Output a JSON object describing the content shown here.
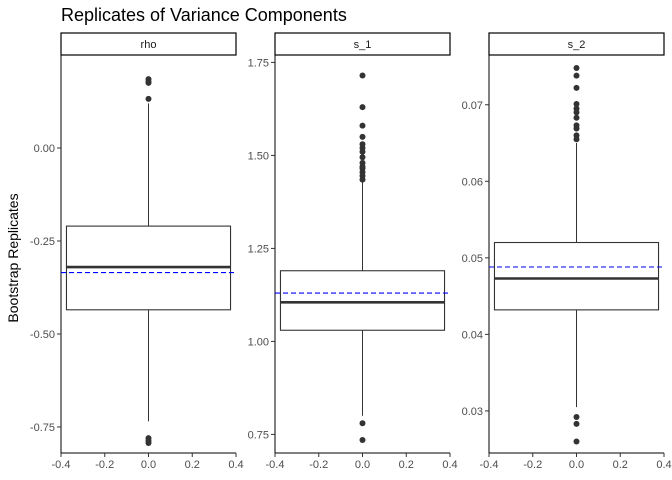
{
  "chart_data": {
    "type": "boxplot",
    "title": "Replicates of Variance Components",
    "ylabel": "Bootstrap Replicates",
    "xlabel": "",
    "x_ticks": [
      "-0.4",
      "-0.2",
      "0.0",
      "0.2",
      "0.4"
    ],
    "xlim": [
      -0.4,
      0.4
    ],
    "grid": false,
    "reference_line": {
      "style": "dashed",
      "color": "#0000ff"
    },
    "colors": {
      "box": "#333333",
      "median": "#333333",
      "outlier": "#333333",
      "reference": "#0000ff"
    },
    "panels": [
      {
        "strip_label": "rho",
        "ylim": [
          -0.82,
          0.25
        ],
        "y_ticks": [
          {
            "label": "0.00",
            "v": 0.0
          },
          {
            "label": "-0.25",
            "v": -0.25
          },
          {
            "label": "-0.50",
            "v": -0.5
          },
          {
            "label": "-0.75",
            "v": -0.75
          }
        ],
        "box": {
          "lower_whisker": -0.735,
          "q1": -0.435,
          "median": -0.32,
          "q3": -0.21,
          "upper_whisker": 0.12
        },
        "reference_value": -0.335,
        "outliers": [
          0.185,
          0.178,
          0.175,
          0.132,
          -0.78,
          -0.787,
          -0.793
        ]
      },
      {
        "strip_label": "s_1",
        "ylim": [
          0.7,
          1.77
        ],
        "y_ticks": [
          {
            "label": "1.75",
            "v": 1.75
          },
          {
            "label": "1.50",
            "v": 1.5
          },
          {
            "label": "1.25",
            "v": 1.25
          },
          {
            "label": "1.00",
            "v": 1.0
          },
          {
            "label": "0.75",
            "v": 0.75
          }
        ],
        "box": {
          "lower_whisker": 0.8,
          "q1": 1.03,
          "median": 1.105,
          "q3": 1.19,
          "upper_whisker": 1.43
        },
        "reference_value": 1.13,
        "outliers": [
          1.715,
          1.63,
          1.58,
          1.55,
          1.53,
          1.52,
          1.51,
          1.495,
          1.48,
          1.47,
          1.465,
          1.455,
          1.445,
          1.435,
          0.78,
          0.735
        ]
      },
      {
        "strip_label": "s_2",
        "ylim": [
          0.0245,
          0.0765
        ],
        "y_ticks": [
          {
            "label": "0.07",
            "v": 0.07
          },
          {
            "label": "0.06",
            "v": 0.06
          },
          {
            "label": "0.05",
            "v": 0.05
          },
          {
            "label": "0.04",
            "v": 0.04
          },
          {
            "label": "0.03",
            "v": 0.03
          }
        ],
        "box": {
          "lower_whisker": 0.0305,
          "q1": 0.0432,
          "median": 0.0473,
          "q3": 0.052,
          "upper_whisker": 0.065
        },
        "reference_value": 0.0488,
        "outliers": [
          0.0748,
          0.0738,
          0.0722,
          0.0701,
          0.0695,
          0.069,
          0.0683,
          0.0673,
          0.0669,
          0.066,
          0.0655,
          0.0292,
          0.0283,
          0.026
        ]
      }
    ]
  }
}
